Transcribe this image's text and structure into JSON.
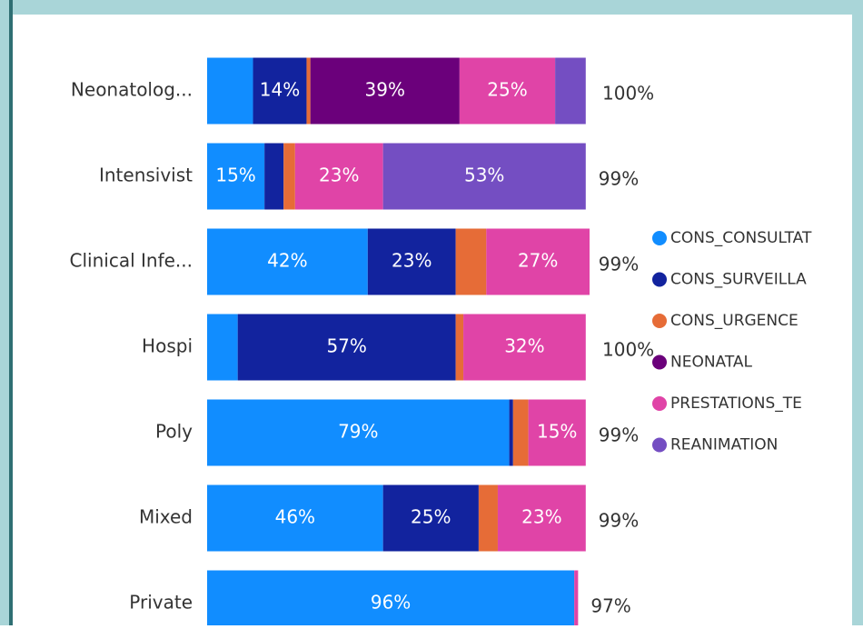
{
  "chart_data": {
    "type": "stacked_bar_100",
    "categories": [
      "Neonatolog...",
      "Intensivist",
      "Clinical Infe...",
      "Hospi",
      "Poly",
      "Mixed",
      "Private"
    ],
    "xlim": [
      0,
      100
    ],
    "series": [
      {
        "name": "CONS_CONSULTAT",
        "color": "#118dff",
        "values": [
          12,
          15,
          42,
          8,
          79,
          46,
          96
        ],
        "value_labels": [
          null,
          "15%",
          "42%",
          null,
          "79%",
          "46%",
          "96%"
        ]
      },
      {
        "name": "CONS_SURVEILLA",
        "color": "#12239e",
        "values": [
          14,
          5,
          23,
          57,
          1,
          25,
          0
        ],
        "value_labels": [
          "14%",
          null,
          "23%",
          "57%",
          null,
          "25%",
          null
        ]
      },
      {
        "name": "CONS_URGENCE",
        "color": "#e66c37",
        "values": [
          1,
          3,
          8,
          2,
          4,
          5,
          0
        ],
        "value_labels": [
          null,
          null,
          null,
          null,
          null,
          null,
          null
        ]
      },
      {
        "name": "NEONATAL",
        "color": "#6b007b",
        "values": [
          39,
          0,
          0,
          0,
          0,
          0,
          0
        ],
        "value_labels": [
          "39%",
          null,
          null,
          null,
          null,
          null,
          null
        ]
      },
      {
        "name": "PRESTATIONS_TE",
        "color": "#e044a7",
        "values": [
          25,
          23,
          27,
          32,
          15,
          23,
          1
        ],
        "value_labels": [
          "25%",
          "23%",
          "27%",
          "32%",
          "15%",
          "23%",
          null
        ]
      },
      {
        "name": "REANIMATION",
        "color": "#744ec2",
        "values": [
          8,
          53,
          0,
          0,
          0,
          0,
          0
        ],
        "value_labels": [
          null,
          "53%",
          null,
          null,
          null,
          null,
          null
        ]
      }
    ],
    "totals": [
      100,
      99,
      99,
      100,
      99,
      99,
      97
    ],
    "total_labels": [
      "100%",
      "99%",
      "99%",
      "100%",
      "99%",
      "99%",
      "97%"
    ],
    "legend": "right"
  }
}
